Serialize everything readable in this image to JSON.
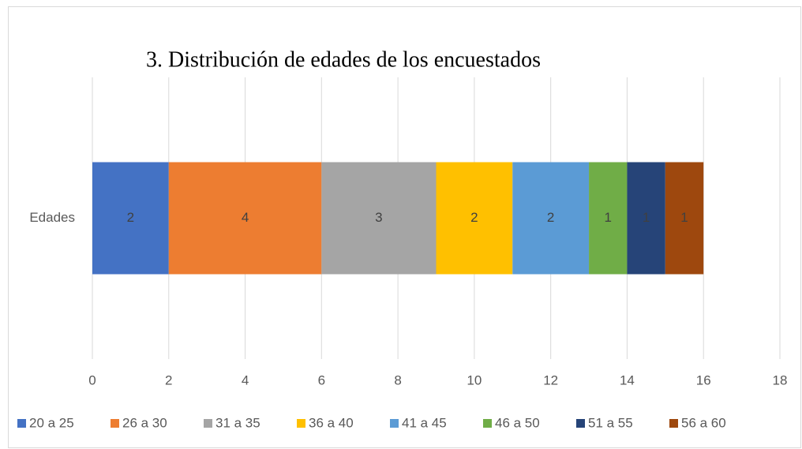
{
  "chart_data": {
    "type": "bar",
    "orientation": "horizontal",
    "stacked": true,
    "title": "3. Distribución de edades de los encuestados",
    "categories": [
      "Edades"
    ],
    "series": [
      {
        "name": "20 a 25",
        "color": "#4472c4",
        "values": [
          2
        ]
      },
      {
        "name": "26 a 30",
        "color": "#ed7d31",
        "values": [
          4
        ]
      },
      {
        "name": "31 a 35",
        "color": "#a5a5a5",
        "values": [
          3
        ]
      },
      {
        "name": "36 a 40",
        "color": "#ffc000",
        "values": [
          2
        ]
      },
      {
        "name": "41 a 45",
        "color": "#5b9bd5",
        "values": [
          2
        ]
      },
      {
        "name": "46 a 50",
        "color": "#70ad47",
        "values": [
          1
        ]
      },
      {
        "name": "51 a 55",
        "color": "#264478",
        "values": [
          1
        ]
      },
      {
        "name": "56 a 60",
        "color": "#9e480e",
        "values": [
          1
        ]
      }
    ],
    "xlim": [
      0,
      18
    ],
    "xticks": [
      0,
      2,
      4,
      6,
      8,
      10,
      12,
      14,
      16,
      18
    ],
    "grid": true,
    "data_labels": true,
    "legend": "bottom"
  }
}
